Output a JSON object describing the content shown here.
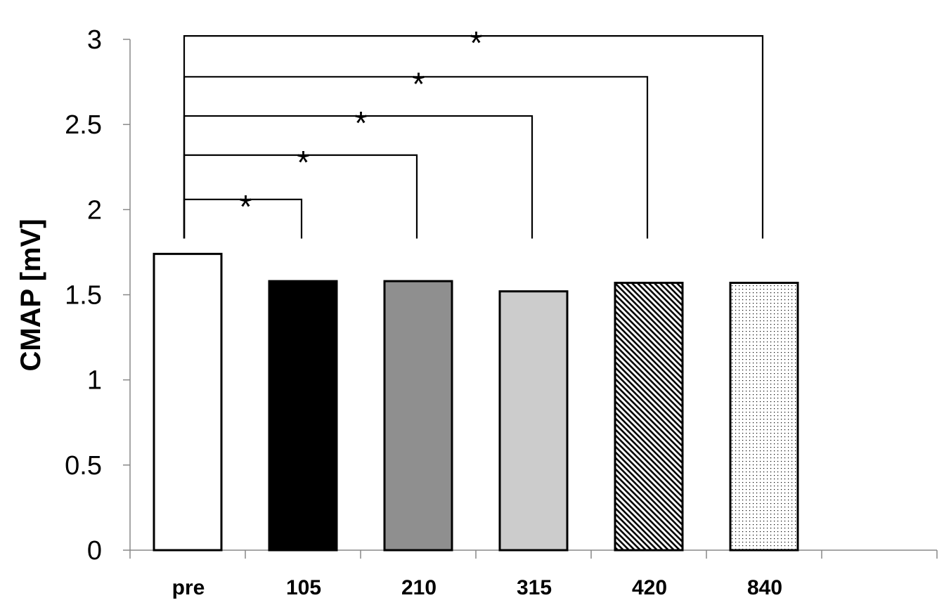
{
  "chart_data": {
    "type": "bar",
    "title": "",
    "xlabel": "",
    "ylabel": "CMAP [mV]",
    "ylim": [
      0,
      3
    ],
    "yticks": [
      "0",
      "0.5",
      "1",
      "1.5",
      "2",
      "2.5",
      "3"
    ],
    "categories": [
      "pre",
      "105",
      "210",
      "315",
      "420",
      "840"
    ],
    "values": [
      1.74,
      1.58,
      1.58,
      1.52,
      1.57,
      1.57
    ],
    "bar_fills": [
      "white",
      "#000000",
      "#8f8f8f",
      "#cccccc",
      "diagonal-hatch",
      "dots"
    ],
    "grid": false,
    "legend": "none",
    "significance": [
      {
        "from": "pre",
        "to": "105",
        "level": 2.06,
        "label": "*"
      },
      {
        "from": "pre",
        "to": "210",
        "level": 2.32,
        "label": "*"
      },
      {
        "from": "pre",
        "to": "315",
        "level": 2.55,
        "label": "*"
      },
      {
        "from": "pre",
        "to": "420",
        "level": 2.78,
        "label": "*"
      },
      {
        "from": "pre",
        "to": "840",
        "level": 3.02,
        "label": "*"
      }
    ]
  }
}
